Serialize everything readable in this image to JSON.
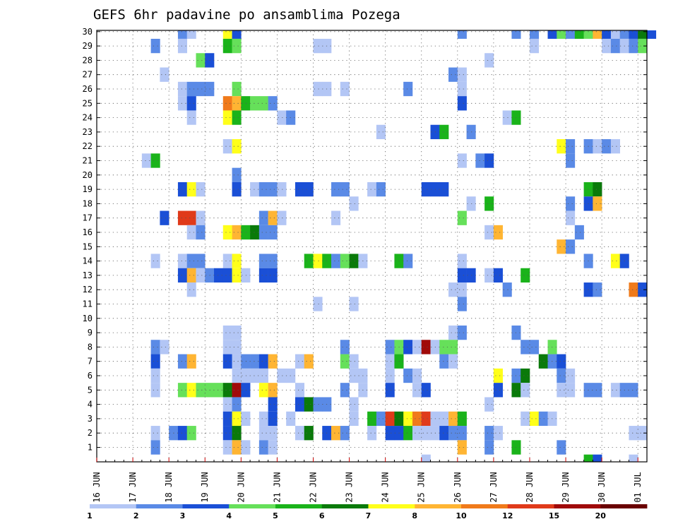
{
  "chart_data": {
    "type": "heatmap",
    "title": "GEFS 6hr padavine po ansamblima Pozega",
    "xlabel": "",
    "ylabel": "",
    "x_range": [
      "2024-06-16T00:00",
      "2024-07-01T06:00"
    ],
    "x_step_hours": 6,
    "x_tick_labels": [
      "16 JUN",
      "17 JUN",
      "18 JUN",
      "19 JUN",
      "20 JUN",
      "21 JUN",
      "22 JUN",
      "23 JUN",
      "24 JUN",
      "25 JUN",
      "26 JUN",
      "27 JUN",
      "28 JUN",
      "29 JUN",
      "30 JUN",
      "01 JUL"
    ],
    "y_tick_labels": [
      "1",
      "2",
      "3",
      "4",
      "5",
      "6",
      "7",
      "8",
      "9",
      "10",
      "11",
      "12",
      "13",
      "14",
      "15",
      "16",
      "17",
      "18",
      "19",
      "20",
      "21",
      "22",
      "23",
      "24",
      "25",
      "26",
      "27",
      "28",
      "29",
      "30"
    ],
    "grid": true,
    "colorbar": {
      "placement": "bottom",
      "labels": [
        "1",
        "2",
        "3",
        "4",
        "5",
        "6",
        "7",
        "8",
        "10",
        "12",
        "15",
        "20"
      ],
      "colors": [
        "#b3c6f5",
        "#5a8ae6",
        "#1a4fd6",
        "#66e05a",
        "#1ab31a",
        "#0a7a0a",
        "#ffff1a",
        "#ffb533",
        "#f07a1a",
        "#e03a1a",
        "#a00a0a",
        "#6a0000"
      ]
    },
    "cells_format": "[time_index, member, class_index]",
    "cells": [
      [
        9,
        30,
        1
      ],
      [
        10,
        30,
        0
      ],
      [
        14,
        30,
        6
      ],
      [
        15,
        30,
        2
      ],
      [
        40,
        30,
        1
      ],
      [
        46,
        30,
        1
      ],
      [
        48,
        30,
        1
      ],
      [
        50,
        30,
        2
      ],
      [
        51,
        30,
        3
      ],
      [
        52,
        30,
        1
      ],
      [
        53,
        30,
        4
      ],
      [
        54,
        30,
        3
      ],
      [
        55,
        30,
        7
      ],
      [
        56,
        30,
        2
      ],
      [
        57,
        30,
        0
      ],
      [
        58,
        30,
        1
      ],
      [
        59,
        30,
        2
      ],
      [
        60,
        30,
        5
      ],
      [
        61,
        30,
        2
      ],
      [
        6,
        29,
        1
      ],
      [
        9,
        29,
        0
      ],
      [
        14,
        29,
        4
      ],
      [
        15,
        29,
        3
      ],
      [
        24,
        29,
        0
      ],
      [
        25,
        29,
        0
      ],
      [
        48,
        29,
        0
      ],
      [
        56,
        29,
        0
      ],
      [
        57,
        29,
        1
      ],
      [
        58,
        29,
        0
      ],
      [
        59,
        29,
        1
      ],
      [
        60,
        29,
        3
      ],
      [
        11,
        28,
        3
      ],
      [
        12,
        28,
        2
      ],
      [
        43,
        28,
        0
      ],
      [
        7,
        27,
        0
      ],
      [
        39,
        27,
        1
      ],
      [
        40,
        27,
        0
      ],
      [
        9,
        26,
        0
      ],
      [
        10,
        26,
        1
      ],
      [
        11,
        26,
        1
      ],
      [
        12,
        26,
        1
      ],
      [
        15,
        26,
        3
      ],
      [
        24,
        26,
        0
      ],
      [
        25,
        26,
        0
      ],
      [
        27,
        26,
        0
      ],
      [
        34,
        26,
        1
      ],
      [
        40,
        26,
        0
      ],
      [
        9,
        25,
        0
      ],
      [
        10,
        25,
        2
      ],
      [
        14,
        25,
        8
      ],
      [
        15,
        25,
        7
      ],
      [
        16,
        25,
        4
      ],
      [
        17,
        25,
        3
      ],
      [
        18,
        25,
        3
      ],
      [
        19,
        25,
        1
      ],
      [
        40,
        25,
        2
      ],
      [
        10,
        24,
        0
      ],
      [
        14,
        24,
        6
      ],
      [
        15,
        24,
        4
      ],
      [
        20,
        24,
        0
      ],
      [
        21,
        24,
        1
      ],
      [
        45,
        24,
        0
      ],
      [
        46,
        24,
        4
      ],
      [
        31,
        23,
        0
      ],
      [
        37,
        23,
        2
      ],
      [
        38,
        23,
        4
      ],
      [
        41,
        23,
        1
      ],
      [
        14,
        22,
        0
      ],
      [
        15,
        22,
        6
      ],
      [
        51,
        22,
        6
      ],
      [
        52,
        22,
        1
      ],
      [
        54,
        22,
        1
      ],
      [
        55,
        22,
        0
      ],
      [
        56,
        22,
        1
      ],
      [
        57,
        22,
        0
      ],
      [
        5,
        21,
        0
      ],
      [
        6,
        21,
        4
      ],
      [
        40,
        21,
        0
      ],
      [
        42,
        21,
        1
      ],
      [
        43,
        21,
        2
      ],
      [
        52,
        21,
        1
      ],
      [
        15,
        20,
        1
      ],
      [
        9,
        19,
        2
      ],
      [
        10,
        19,
        6
      ],
      [
        11,
        19,
        0
      ],
      [
        15,
        19,
        2
      ],
      [
        17,
        19,
        0
      ],
      [
        18,
        19,
        1
      ],
      [
        19,
        19,
        1
      ],
      [
        20,
        19,
        0
      ],
      [
        22,
        19,
        2
      ],
      [
        23,
        19,
        2
      ],
      [
        26,
        19,
        1
      ],
      [
        27,
        19,
        1
      ],
      [
        30,
        19,
        0
      ],
      [
        31,
        19,
        1
      ],
      [
        36,
        19,
        2
      ],
      [
        37,
        19,
        2
      ],
      [
        38,
        19,
        2
      ],
      [
        54,
        19,
        4
      ],
      [
        55,
        19,
        5
      ],
      [
        28,
        18,
        0
      ],
      [
        41,
        18,
        0
      ],
      [
        43,
        18,
        4
      ],
      [
        52,
        18,
        1
      ],
      [
        54,
        18,
        2
      ],
      [
        55,
        18,
        7
      ],
      [
        7,
        17,
        2
      ],
      [
        9,
        17,
        9
      ],
      [
        10,
        17,
        9
      ],
      [
        11,
        17,
        0
      ],
      [
        18,
        17,
        1
      ],
      [
        19,
        17,
        7
      ],
      [
        20,
        17,
        0
      ],
      [
        26,
        17,
        0
      ],
      [
        40,
        17,
        3
      ],
      [
        52,
        17,
        0
      ],
      [
        10,
        16,
        0
      ],
      [
        11,
        16,
        1
      ],
      [
        14,
        16,
        6
      ],
      [
        15,
        16,
        7
      ],
      [
        16,
        16,
        4
      ],
      [
        17,
        16,
        5
      ],
      [
        18,
        16,
        1
      ],
      [
        19,
        16,
        1
      ],
      [
        43,
        16,
        0
      ],
      [
        44,
        16,
        7
      ],
      [
        53,
        16,
        1
      ],
      [
        51,
        15,
        7
      ],
      [
        52,
        15,
        1
      ],
      [
        6,
        14,
        0
      ],
      [
        9,
        14,
        0
      ],
      [
        10,
        14,
        1
      ],
      [
        11,
        14,
        1
      ],
      [
        14,
        14,
        0
      ],
      [
        15,
        14,
        6
      ],
      [
        18,
        14,
        1
      ],
      [
        19,
        14,
        1
      ],
      [
        23,
        14,
        4
      ],
      [
        24,
        14,
        6
      ],
      [
        25,
        14,
        4
      ],
      [
        26,
        14,
        1
      ],
      [
        27,
        14,
        3
      ],
      [
        28,
        14,
        5
      ],
      [
        29,
        14,
        0
      ],
      [
        33,
        14,
        4
      ],
      [
        34,
        14,
        1
      ],
      [
        40,
        14,
        0
      ],
      [
        54,
        14,
        1
      ],
      [
        57,
        14,
        6
      ],
      [
        58,
        14,
        2
      ],
      [
        9,
        13,
        2
      ],
      [
        10,
        13,
        7
      ],
      [
        11,
        13,
        0
      ],
      [
        12,
        13,
        1
      ],
      [
        13,
        13,
        2
      ],
      [
        14,
        13,
        2
      ],
      [
        15,
        13,
        6
      ],
      [
        16,
        13,
        0
      ],
      [
        18,
        13,
        2
      ],
      [
        19,
        13,
        2
      ],
      [
        40,
        13,
        2
      ],
      [
        41,
        13,
        2
      ],
      [
        43,
        13,
        0
      ],
      [
        44,
        13,
        2
      ],
      [
        47,
        13,
        4
      ],
      [
        10,
        12,
        0
      ],
      [
        39,
        12,
        0
      ],
      [
        40,
        12,
        0
      ],
      [
        45,
        12,
        1
      ],
      [
        54,
        12,
        2
      ],
      [
        55,
        12,
        1
      ],
      [
        59,
        12,
        8
      ],
      [
        60,
        12,
        2
      ],
      [
        24,
        11,
        0
      ],
      [
        28,
        11,
        0
      ],
      [
        40,
        11,
        1
      ],
      [
        14,
        9,
        0
      ],
      [
        15,
        9,
        0
      ],
      [
        39,
        9,
        0
      ],
      [
        40,
        9,
        1
      ],
      [
        46,
        9,
        1
      ],
      [
        6,
        8,
        1
      ],
      [
        7,
        8,
        0
      ],
      [
        14,
        8,
        0
      ],
      [
        15,
        8,
        0
      ],
      [
        27,
        8,
        1
      ],
      [
        32,
        8,
        1
      ],
      [
        33,
        8,
        3
      ],
      [
        34,
        8,
        2
      ],
      [
        35,
        8,
        0
      ],
      [
        36,
        8,
        10
      ],
      [
        37,
        8,
        0
      ],
      [
        38,
        8,
        3
      ],
      [
        39,
        8,
        3
      ],
      [
        47,
        8,
        1
      ],
      [
        48,
        8,
        1
      ],
      [
        50,
        8,
        3
      ],
      [
        6,
        7,
        2
      ],
      [
        9,
        7,
        1
      ],
      [
        10,
        7,
        7
      ],
      [
        14,
        7,
        2
      ],
      [
        15,
        7,
        0
      ],
      [
        16,
        7,
        1
      ],
      [
        17,
        7,
        1
      ],
      [
        18,
        7,
        2
      ],
      [
        19,
        7,
        7
      ],
      [
        22,
        7,
        0
      ],
      [
        23,
        7,
        7
      ],
      [
        27,
        7,
        3
      ],
      [
        28,
        7,
        0
      ],
      [
        32,
        7,
        0
      ],
      [
        33,
        7,
        4
      ],
      [
        38,
        7,
        1
      ],
      [
        39,
        7,
        0
      ],
      [
        49,
        7,
        5
      ],
      [
        50,
        7,
        1
      ],
      [
        51,
        7,
        2
      ],
      [
        6,
        6,
        0
      ],
      [
        15,
        6,
        0
      ],
      [
        16,
        6,
        0
      ],
      [
        17,
        6,
        0
      ],
      [
        18,
        6,
        0
      ],
      [
        20,
        6,
        0
      ],
      [
        21,
        6,
        0
      ],
      [
        28,
        6,
        0
      ],
      [
        29,
        6,
        0
      ],
      [
        32,
        6,
        0
      ],
      [
        34,
        6,
        1
      ],
      [
        35,
        6,
        0
      ],
      [
        44,
        6,
        6
      ],
      [
        46,
        6,
        1
      ],
      [
        47,
        6,
        5
      ],
      [
        51,
        6,
        1
      ],
      [
        52,
        6,
        0
      ],
      [
        6,
        5,
        0
      ],
      [
        9,
        5,
        3
      ],
      [
        10,
        5,
        6
      ],
      [
        11,
        5,
        3
      ],
      [
        12,
        5,
        3
      ],
      [
        13,
        5,
        3
      ],
      [
        14,
        5,
        5
      ],
      [
        15,
        5,
        10
      ],
      [
        16,
        5,
        2
      ],
      [
        18,
        5,
        6
      ],
      [
        19,
        5,
        7
      ],
      [
        22,
        5,
        0
      ],
      [
        27,
        5,
        1
      ],
      [
        29,
        5,
        0
      ],
      [
        32,
        5,
        2
      ],
      [
        35,
        5,
        0
      ],
      [
        36,
        5,
        2
      ],
      [
        44,
        5,
        2
      ],
      [
        46,
        5,
        5
      ],
      [
        47,
        5,
        0
      ],
      [
        51,
        5,
        0
      ],
      [
        52,
        5,
        0
      ],
      [
        54,
        5,
        1
      ],
      [
        55,
        5,
        1
      ],
      [
        57,
        5,
        0
      ],
      [
        58,
        5,
        1
      ],
      [
        59,
        5,
        1
      ],
      [
        14,
        4,
        0
      ],
      [
        15,
        4,
        1
      ],
      [
        19,
        4,
        2
      ],
      [
        22,
        4,
        2
      ],
      [
        23,
        4,
        5
      ],
      [
        24,
        4,
        1
      ],
      [
        25,
        4,
        1
      ],
      [
        28,
        4,
        0
      ],
      [
        43,
        4,
        0
      ],
      [
        14,
        3,
        2
      ],
      [
        15,
        3,
        6
      ],
      [
        16,
        3,
        0
      ],
      [
        18,
        3,
        0
      ],
      [
        19,
        3,
        2
      ],
      [
        21,
        3,
        0
      ],
      [
        28,
        3,
        0
      ],
      [
        30,
        3,
        4
      ],
      [
        31,
        3,
        1
      ],
      [
        32,
        3,
        9
      ],
      [
        33,
        3,
        5
      ],
      [
        34,
        3,
        6
      ],
      [
        35,
        3,
        8
      ],
      [
        36,
        3,
        9
      ],
      [
        37,
        3,
        0
      ],
      [
        38,
        3,
        0
      ],
      [
        39,
        3,
        7
      ],
      [
        40,
        3,
        4
      ],
      [
        47,
        3,
        0
      ],
      [
        48,
        3,
        6
      ],
      [
        49,
        3,
        1
      ],
      [
        50,
        3,
        0
      ],
      [
        6,
        2,
        0
      ],
      [
        8,
        2,
        1
      ],
      [
        9,
        2,
        2
      ],
      [
        10,
        2,
        3
      ],
      [
        14,
        2,
        2
      ],
      [
        15,
        2,
        5
      ],
      [
        18,
        2,
        0
      ],
      [
        19,
        2,
        0
      ],
      [
        22,
        2,
        0
      ],
      [
        23,
        2,
        5
      ],
      [
        25,
        2,
        2
      ],
      [
        26,
        2,
        7
      ],
      [
        27,
        2,
        1
      ],
      [
        30,
        2,
        0
      ],
      [
        32,
        2,
        2
      ],
      [
        33,
        2,
        2
      ],
      [
        34,
        2,
        4
      ],
      [
        35,
        2,
        0
      ],
      [
        36,
        2,
        0
      ],
      [
        37,
        2,
        0
      ],
      [
        38,
        2,
        2
      ],
      [
        39,
        2,
        1
      ],
      [
        40,
        2,
        1
      ],
      [
        43,
        2,
        1
      ],
      [
        44,
        2,
        0
      ],
      [
        59,
        2,
        0
      ],
      [
        60,
        2,
        0
      ],
      [
        6,
        1,
        1
      ],
      [
        14,
        1,
        0
      ],
      [
        15,
        1,
        7
      ],
      [
        16,
        1,
        0
      ],
      [
        18,
        1,
        1
      ],
      [
        19,
        1,
        0
      ],
      [
        40,
        1,
        7
      ],
      [
        43,
        1,
        1
      ],
      [
        46,
        1,
        4
      ],
      [
        51,
        1,
        1
      ],
      [
        36,
        0,
        0
      ],
      [
        54,
        0,
        4
      ],
      [
        55,
        0,
        2
      ],
      [
        59,
        0,
        0
      ]
    ]
  }
}
